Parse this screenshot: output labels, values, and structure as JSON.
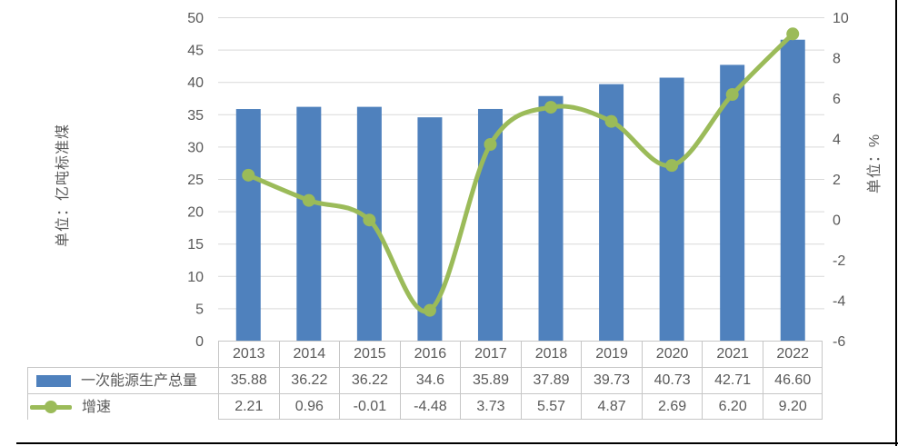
{
  "chart_data": {
    "type": "bar-line-combo",
    "categories": [
      "2013",
      "2014",
      "2015",
      "2016",
      "2017",
      "2018",
      "2019",
      "2020",
      "2021",
      "2022"
    ],
    "series": [
      {
        "name": "一次能源生产总量",
        "type": "bar",
        "axis": "left",
        "color": "#4F81BD",
        "values": [
          35.88,
          36.22,
          36.22,
          34.6,
          35.89,
          37.89,
          39.73,
          40.73,
          42.71,
          46.6
        ],
        "display_values": [
          "35.88",
          "36.22",
          "36.22",
          "34.6",
          "35.89",
          "37.89",
          "39.73",
          "40.73",
          "42.71",
          "46.60"
        ]
      },
      {
        "name": "增速",
        "type": "line",
        "axis": "right",
        "color": "#9BBB59",
        "values": [
          2.21,
          0.96,
          -0.01,
          -4.48,
          3.73,
          5.57,
          4.87,
          2.69,
          6.2,
          9.2
        ],
        "display_values": [
          "2.21",
          "0.96",
          "-0.01",
          "-4.48",
          "3.73",
          "5.57",
          "4.87",
          "2.69",
          "6.20",
          "9.20"
        ]
      }
    ],
    "left_axis": {
      "title": "单位：亿吨标准煤",
      "min": 0,
      "max": 50,
      "step": 5,
      "ticks": [
        "0",
        "5",
        "10",
        "15",
        "20",
        "25",
        "30",
        "35",
        "40",
        "45",
        "50"
      ]
    },
    "right_axis": {
      "title": "单位：%",
      "min": -6,
      "max": 10,
      "step": 2,
      "ticks": [
        "-6",
        "-4",
        "-2",
        "0",
        "2",
        "4",
        "6",
        "8",
        "10"
      ]
    },
    "grid": "horizontal-major-left-axis",
    "legend_position": "table-left"
  },
  "colors": {
    "bar": "#4F81BD",
    "line": "#9BBB59",
    "gridline": "#D9D9D9",
    "table_border": "#C6C6C6",
    "text": "#595959",
    "frame": "#000000",
    "background": "#FFFFFF"
  }
}
